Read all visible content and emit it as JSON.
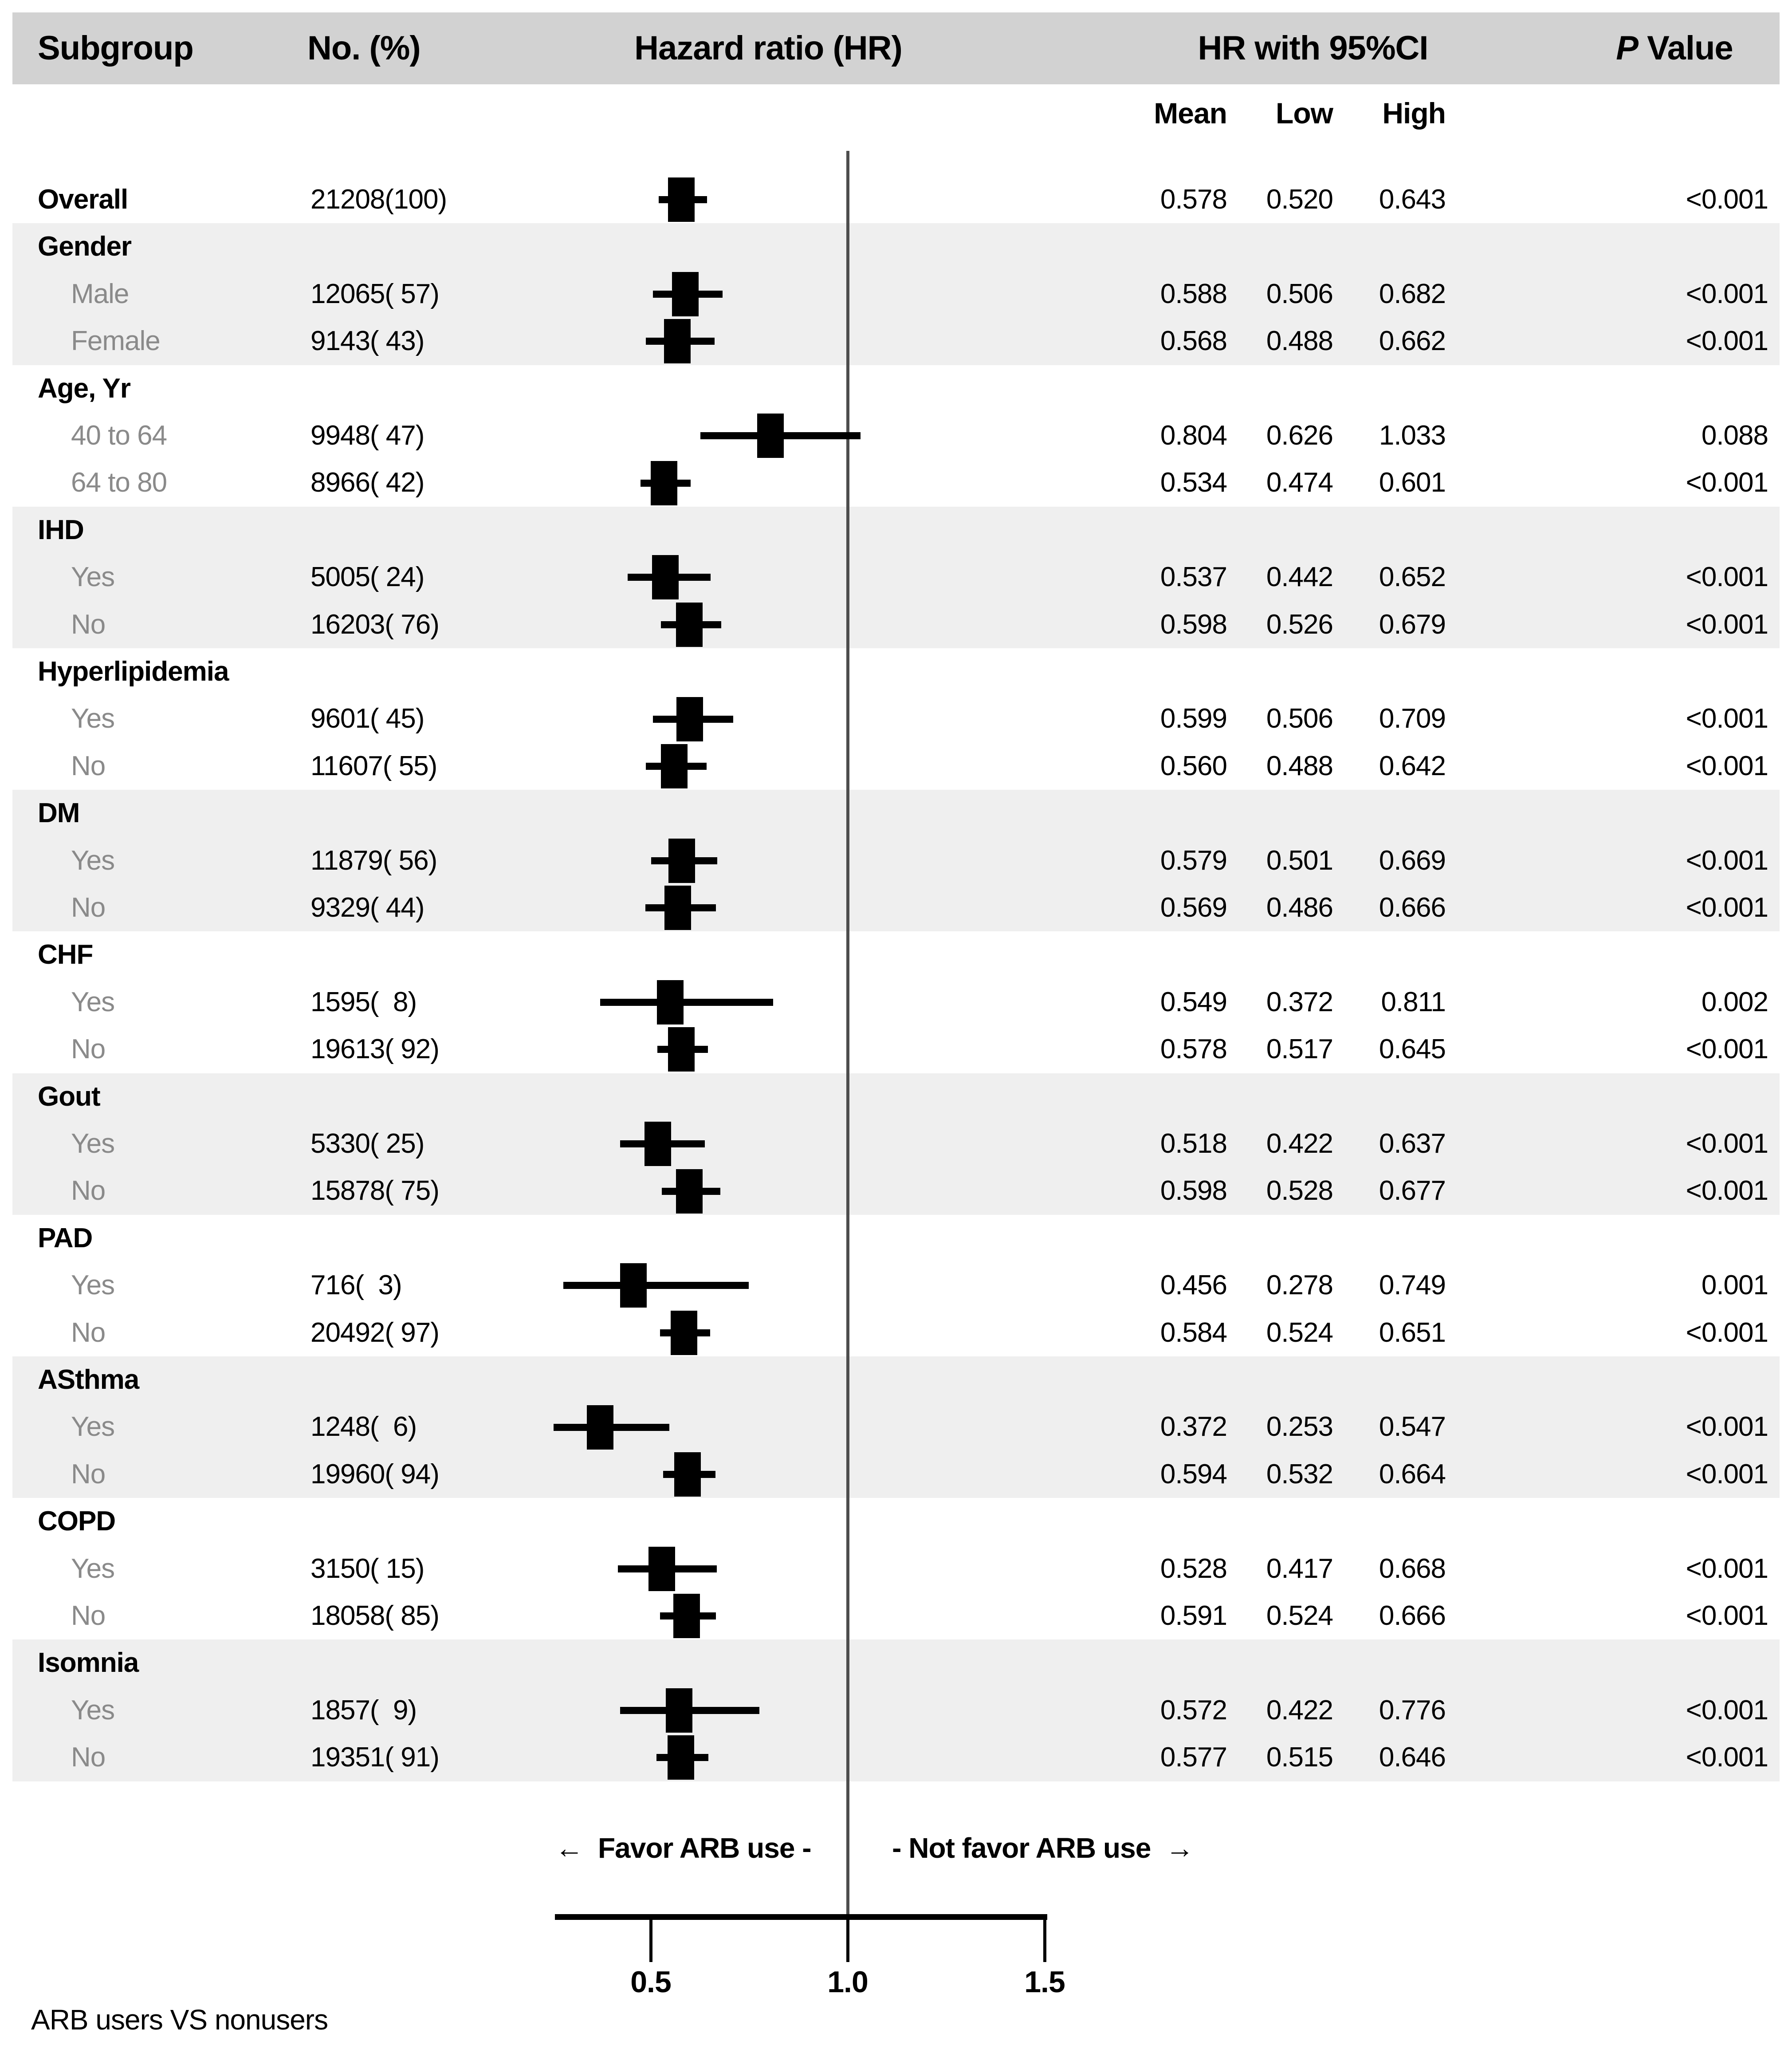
{
  "figure": {
    "header": {
      "subgroup": "Subgroup",
      "no_pct": "No. (%)",
      "hazard_ratio": "Hazard ratio (HR)",
      "hr_with_ci": "HR with 95%CI",
      "p_label": "P",
      "p_value_label": " Value"
    },
    "subheader": {
      "mean": "Mean",
      "low": "Low",
      "high": "High"
    },
    "favor_left": "←  Favor ARB use -",
    "favor_right": "- Not favor ARB use  →",
    "footnote": "ARB users VS nonusers"
  },
  "colors": {
    "header_band": "#d2d2d2",
    "row_band": "#efefef",
    "child_label": "#8a8a8a",
    "reference_line": "#4d4d4d",
    "marker": "#000000"
  },
  "chart_data": {
    "type": "scatter",
    "variant": "forest-plot-with-table",
    "title": "",
    "xlabel": "Hazard ratio (HR)",
    "x_axis_ticks": [
      "0.5",
      "1.0",
      "1.5"
    ],
    "tick_values": [
      0.5,
      1.0,
      1.5
    ],
    "reference_line": 1.0,
    "x_range": [
      0.25,
      1.51
    ],
    "grid": false,
    "legend": "none",
    "columns": [
      "Subgroup",
      "No. (%)",
      "Hazard ratio (HR)",
      "Mean",
      "Low",
      "High",
      "P Value"
    ],
    "rows": [
      {
        "label": "Overall",
        "level": "overall",
        "count": "21208(100)",
        "mean": "0.578",
        "low": "0.520",
        "high": "0.643",
        "p": "<0.001",
        "shade": false
      },
      {
        "label": "Gender",
        "level": "category",
        "shade": true
      },
      {
        "label": "Male",
        "level": "child",
        "count": "12065( 57)",
        "mean": "0.588",
        "low": "0.506",
        "high": "0.682",
        "p": "<0.001",
        "shade": true
      },
      {
        "label": "Female",
        "level": "child",
        "count": "9143( 43)",
        "mean": "0.568",
        "low": "0.488",
        "high": "0.662",
        "p": "<0.001",
        "shade": true
      },
      {
        "label": "Age, Yr",
        "level": "category",
        "shade": false
      },
      {
        "label": "40 to 64",
        "level": "child",
        "count": "9948( 47)",
        "mean": "0.804",
        "low": "0.626",
        "high": "1.033",
        "p": "0.088",
        "shade": false
      },
      {
        "label": "64 to 80",
        "level": "child",
        "count": "8966( 42)",
        "mean": "0.534",
        "low": "0.474",
        "high": "0.601",
        "p": "<0.001",
        "shade": false
      },
      {
        "label": "IHD",
        "level": "category",
        "shade": true
      },
      {
        "label": "Yes",
        "level": "child",
        "count": "5005( 24)",
        "mean": "0.537",
        "low": "0.442",
        "high": "0.652",
        "p": "<0.001",
        "shade": true
      },
      {
        "label": "No",
        "level": "child",
        "count": "16203( 76)",
        "mean": "0.598",
        "low": "0.526",
        "high": "0.679",
        "p": "<0.001",
        "shade": true
      },
      {
        "label": "Hyperlipidemia",
        "level": "category",
        "shade": false
      },
      {
        "label": "Yes",
        "level": "child",
        "count": "9601( 45)",
        "mean": "0.599",
        "low": "0.506",
        "high": "0.709",
        "p": "<0.001",
        "shade": false
      },
      {
        "label": "No",
        "level": "child",
        "count": "11607( 55)",
        "mean": "0.560",
        "low": "0.488",
        "high": "0.642",
        "p": "<0.001",
        "shade": false
      },
      {
        "label": "DM",
        "level": "category",
        "shade": true
      },
      {
        "label": "Yes",
        "level": "child",
        "count": "11879( 56)",
        "mean": "0.579",
        "low": "0.501",
        "high": "0.669",
        "p": "<0.001",
        "shade": true
      },
      {
        "label": "No",
        "level": "child",
        "count": "9329( 44)",
        "mean": "0.569",
        "low": "0.486",
        "high": "0.666",
        "p": "<0.001",
        "shade": true
      },
      {
        "label": "CHF",
        "level": "category",
        "shade": false
      },
      {
        "label": "Yes",
        "level": "child",
        "count": "1595(  8)",
        "mean": "0.549",
        "low": "0.372",
        "high": "0.811",
        "p": "0.002",
        "shade": false
      },
      {
        "label": "No",
        "level": "child",
        "count": "19613( 92)",
        "mean": "0.578",
        "low": "0.517",
        "high": "0.645",
        "p": "<0.001",
        "shade": false
      },
      {
        "label": "Gout",
        "level": "category",
        "shade": true
      },
      {
        "label": "Yes",
        "level": "child",
        "count": "5330( 25)",
        "mean": "0.518",
        "low": "0.422",
        "high": "0.637",
        "p": "<0.001",
        "shade": true
      },
      {
        "label": "No",
        "level": "child",
        "count": "15878( 75)",
        "mean": "0.598",
        "low": "0.528",
        "high": "0.677",
        "p": "<0.001",
        "shade": true
      },
      {
        "label": "PAD",
        "level": "category",
        "shade": false
      },
      {
        "label": "Yes",
        "level": "child",
        "count": "716(  3)",
        "mean": "0.456",
        "low": "0.278",
        "high": "0.749",
        "p": "0.001",
        "shade": false
      },
      {
        "label": "No",
        "level": "child",
        "count": "20492( 97)",
        "mean": "0.584",
        "low": "0.524",
        "high": "0.651",
        "p": "<0.001",
        "shade": false
      },
      {
        "label": "ASthma",
        "level": "category",
        "shade": true
      },
      {
        "label": "Yes",
        "level": "child",
        "count": "1248(  6)",
        "mean": "0.372",
        "low": "0.253",
        "high": "0.547",
        "p": "<0.001",
        "shade": true
      },
      {
        "label": "No",
        "level": "child",
        "count": "19960( 94)",
        "mean": "0.594",
        "low": "0.532",
        "high": "0.664",
        "p": "<0.001",
        "shade": true
      },
      {
        "label": "COPD",
        "level": "category",
        "shade": false
      },
      {
        "label": "Yes",
        "level": "child",
        "count": "3150( 15)",
        "mean": "0.528",
        "low": "0.417",
        "high": "0.668",
        "p": "<0.001",
        "shade": false
      },
      {
        "label": "No",
        "level": "child",
        "count": "18058( 85)",
        "mean": "0.591",
        "low": "0.524",
        "high": "0.666",
        "p": "<0.001",
        "shade": false
      },
      {
        "label": "Isomnia",
        "level": "category",
        "shade": true
      },
      {
        "label": "Yes",
        "level": "child",
        "count": "1857(  9)",
        "mean": "0.572",
        "low": "0.422",
        "high": "0.776",
        "p": "<0.001",
        "shade": true
      },
      {
        "label": "No",
        "level": "child",
        "count": "19351( 91)",
        "mean": "0.577",
        "low": "0.515",
        "high": "0.646",
        "p": "<0.001",
        "shade": true
      }
    ]
  }
}
